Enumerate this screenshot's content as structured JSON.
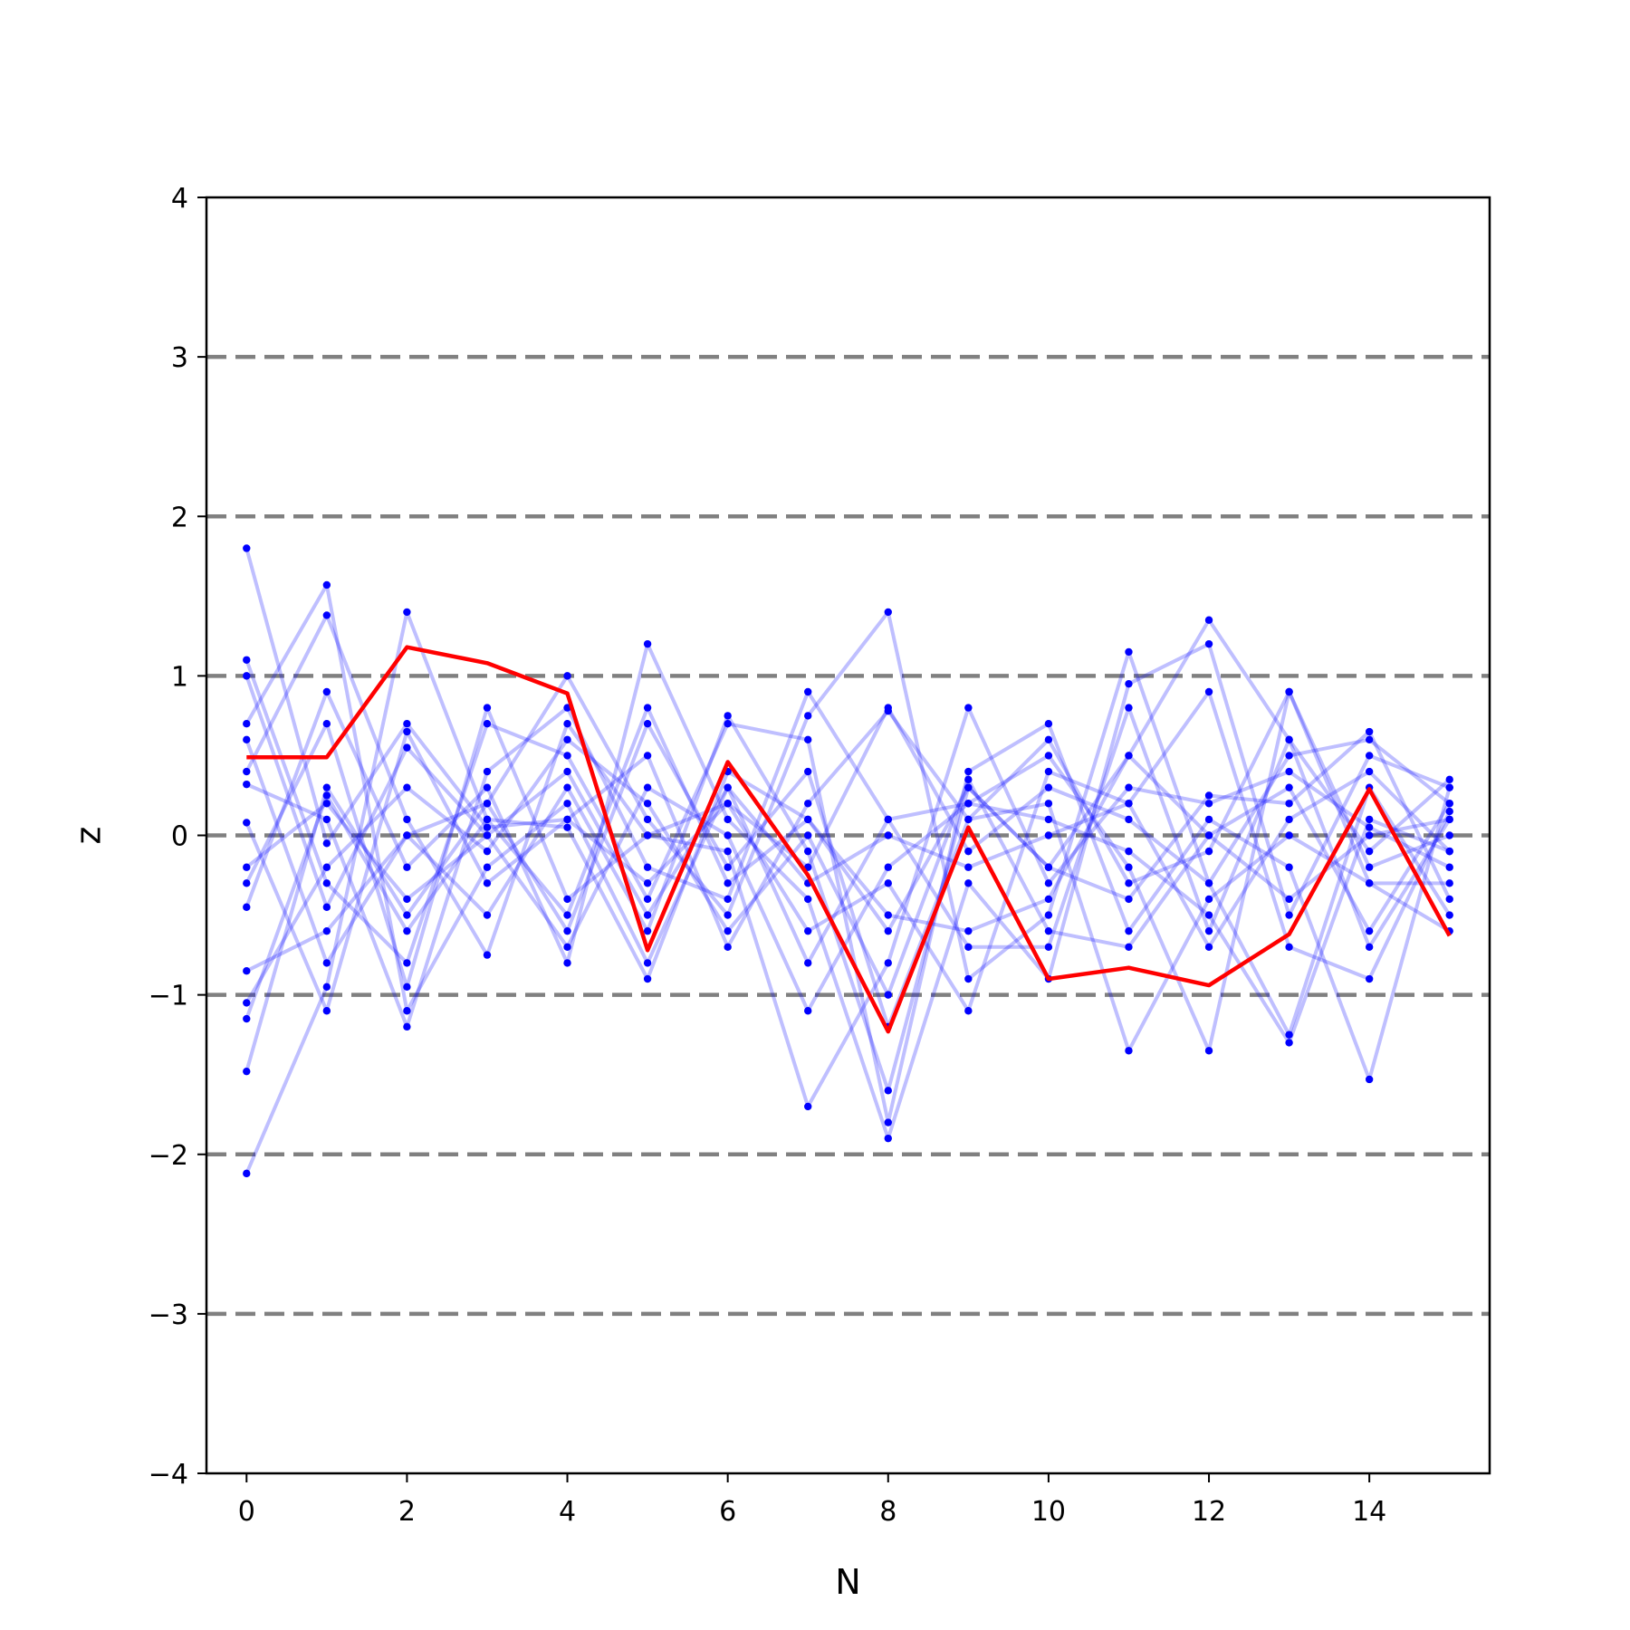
{
  "chart_data": {
    "type": "line",
    "title": "",
    "xlabel": "N",
    "ylabel": "z",
    "xlim": [
      -0.5,
      15.5
    ],
    "ylim": [
      -4,
      4
    ],
    "xticks": [
      0,
      2,
      4,
      6,
      8,
      10,
      12,
      14
    ],
    "yticks": [
      -4,
      -3,
      -2,
      -1,
      0,
      1,
      2,
      3,
      4
    ],
    "ytick_labels": [
      "−4",
      "−3",
      "−2",
      "−1",
      "0",
      "1",
      "2",
      "3",
      "4"
    ],
    "reference_lines": [
      -3,
      -2,
      -1,
      0,
      1,
      2,
      3
    ],
    "reference_line_color": "#808080",
    "ensemble_color": "#0000ff",
    "highlight_color": "#ff0000",
    "x": [
      0,
      1,
      2,
      3,
      4,
      5,
      6,
      7,
      8,
      9,
      10,
      11,
      12,
      13,
      14,
      15
    ],
    "highlight_series": [
      0.49,
      0.49,
      1.18,
      1.08,
      0.89,
      -0.72,
      0.46,
      -0.25,
      -1.23,
      0.05,
      -0.9,
      -0.83,
      -0.94,
      -0.62,
      0.29,
      -0.63
    ],
    "ensemble_series": [
      [
        1.8,
        -0.05,
        0.7,
        0.05,
        0.1,
        -0.3,
        0.2,
        -0.2,
        0.8,
        -0.1,
        0.3,
        0.1,
        -0.3,
        0.5,
        0.6,
        0.2
      ],
      [
        -2.12,
        -0.95,
        1.4,
        0.1,
        -0.5,
        0.8,
        -0.3,
        0.1,
        -0.6,
        0.3,
        -0.2,
        0.5,
        1.35,
        0.6,
        -0.7,
        0.1
      ],
      [
        1.1,
        -0.3,
        -0.8,
        0.7,
        0.5,
        -0.4,
        0.7,
        0.6,
        -1.8,
        0.4,
        0.7,
        -0.6,
        0.1,
        -0.2,
        -1.53,
        0.3
      ],
      [
        -1.48,
        0.3,
        -0.5,
        0.2,
        1.0,
        0.1,
        -0.5,
        0.75,
        1.4,
        -0.9,
        -0.5,
        1.15,
        -0.3,
        -1.25,
        0.3,
        -0.5
      ],
      [
        0.7,
        1.57,
        -1.1,
        -0.2,
        0.2,
        -0.8,
        0.3,
        -0.8,
        0.1,
        0.2,
        0.5,
        -0.2,
        -1.35,
        0.9,
        -0.2,
        0.0
      ],
      [
        0.4,
        1.38,
        0.1,
        -0.75,
        0.7,
        0.0,
        -0.1,
        -1.7,
        -0.8,
        0.8,
        -0.3,
        0.3,
        0.2,
        0.4,
        0.05,
        -0.2
      ],
      [
        -0.45,
        0.9,
        -0.2,
        0.3,
        -0.8,
        1.2,
        0.1,
        -0.4,
        -1.9,
        -0.3,
        -0.9,
        0.95,
        1.2,
        -0.5,
        0.5,
        0.3
      ],
      [
        0.08,
        -1.1,
        0.65,
        -0.3,
        0.1,
        0.5,
        -0.7,
        0.2,
        0.78,
        0.1,
        0.2,
        -1.35,
        -0.4,
        0.0,
        -0.3,
        -0.3
      ],
      [
        -0.3,
        0.7,
        -0.95,
        0.8,
        -0.4,
        0.0,
        0.2,
        -0.6,
        -0.3,
        -1.1,
        0.4,
        0.2,
        0.9,
        -0.7,
        -0.9,
        0.15
      ],
      [
        -0.85,
        -0.6,
        0.0,
        -0.5,
        0.3,
        -0.6,
        0.75,
        -0.1,
        -1.6,
        0.3,
        -0.2,
        -0.4,
        0.25,
        0.2,
        0.65,
        -0.4
      ],
      [
        0.32,
        0.1,
        -1.2,
        0.4,
        0.8,
        -0.2,
        -0.4,
        0.9,
        0.1,
        -0.7,
        -0.7,
        0.8,
        -0.6,
        0.6,
        -0.1,
        0.35
      ],
      [
        1.0,
        -0.45,
        0.55,
        0.0,
        -0.7,
        0.3,
        0.0,
        -1.1,
        -0.2,
        0.2,
        0.1,
        -0.1,
        -0.5,
        -1.3,
        0.1,
        -0.1
      ],
      [
        -1.15,
        0.25,
        -0.6,
        0.1,
        0.05,
        -0.9,
        0.4,
        0.1,
        -0.5,
        -0.6,
        -0.4,
        0.5,
        0.0,
        0.3,
        -0.6,
        0.2
      ],
      [
        0.6,
        -0.8,
        0.0,
        0.2,
        -0.6,
        0.7,
        -0.2,
        0.4,
        -1.2,
        0.1,
        0.6,
        -0.3,
        -0.1,
        0.9,
        -0.3,
        -0.6
      ],
      [
        -0.2,
        0.2,
        -0.4,
        0.0,
        0.4,
        -0.5,
        0.3,
        -0.3,
        0.0,
        -0.2,
        0.0,
        0.2,
        -0.7,
        0.1,
        0.4,
        -0.1
      ],
      [
        -1.05,
        -0.2,
        0.3,
        -0.1,
        0.6,
        0.2,
        -0.6,
        0.0,
        -1.0,
        0.35,
        -0.6,
        -0.7,
        0.0,
        -0.4,
        0.0,
        0.1
      ]
    ]
  }
}
